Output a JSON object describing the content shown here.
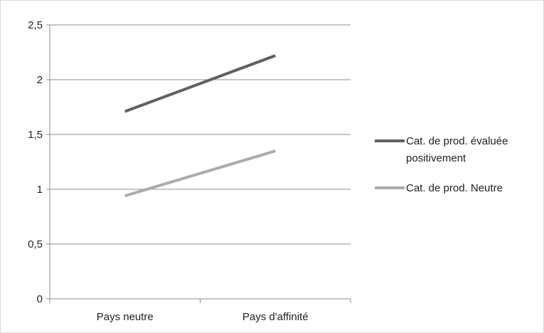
{
  "chart_data": {
    "type": "line",
    "categories": [
      "Pays neutre",
      "Pays d'affinité"
    ],
    "ylim": [
      0,
      2.5
    ],
    "yticks": [
      0,
      0.5,
      1,
      1.5,
      2,
      2.5
    ],
    "ytick_labels": [
      "0",
      "0,5",
      "1",
      "1,5",
      "2",
      "2,5"
    ],
    "grid": true,
    "legend_position": "right",
    "series": [
      {
        "name": "Cat. de prod. évaluée positivement",
        "legend_lines": [
          "Cat. de prod. évaluée",
          "positivement"
        ],
        "values": [
          1.71,
          2.22
        ],
        "color": "#606060"
      },
      {
        "name": "Cat. de prod. Neutre",
        "legend_lines": [
          "Cat. de prod. Neutre"
        ],
        "values": [
          0.94,
          1.35
        ],
        "color": "#ababab"
      }
    ]
  }
}
